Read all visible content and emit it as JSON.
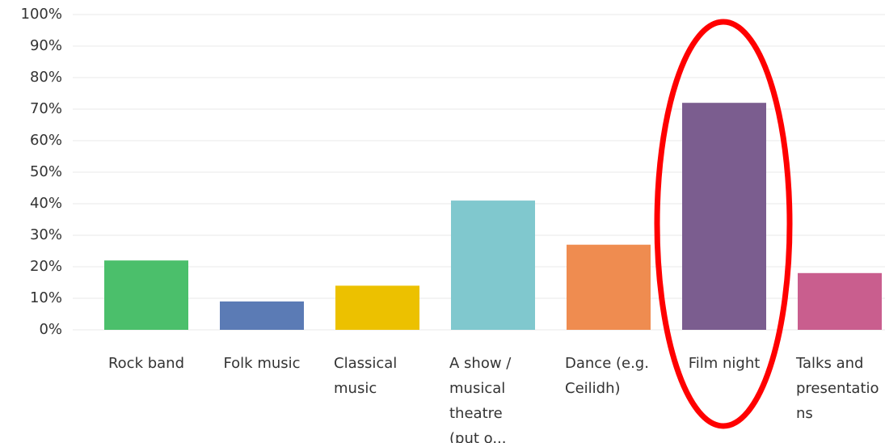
{
  "chart_data": {
    "type": "bar",
    "categories": [
      "Rock band",
      "Folk music",
      "Classical music",
      "A show / musical theatre (put o...",
      "Dance (e.g. Ceilidh)",
      "Film night",
      "Talks and presentations"
    ],
    "values": [
      22,
      9,
      14,
      41,
      27,
      72,
      18
    ],
    "colors": [
      "#4bbf6b",
      "#5b7bb5",
      "#ecc100",
      "#80c8ce",
      "#ef8c50",
      "#7b5d8f",
      "#c95e8e"
    ],
    "ylim": [
      0,
      100
    ],
    "yticks": [
      {
        "value": 0,
        "label": "0%"
      },
      {
        "value": 10,
        "label": "10%"
      },
      {
        "value": 20,
        "label": "20%"
      },
      {
        "value": 30,
        "label": "30%"
      },
      {
        "value": 40,
        "label": "40%"
      },
      {
        "value": 50,
        "label": "50%"
      },
      {
        "value": 60,
        "label": "60%"
      },
      {
        "value": 70,
        "label": "70%"
      },
      {
        "value": 80,
        "label": "80%"
      },
      {
        "value": 90,
        "label": "90%"
      },
      {
        "value": 100,
        "label": "100%"
      }
    ],
    "grid": true
  }
}
